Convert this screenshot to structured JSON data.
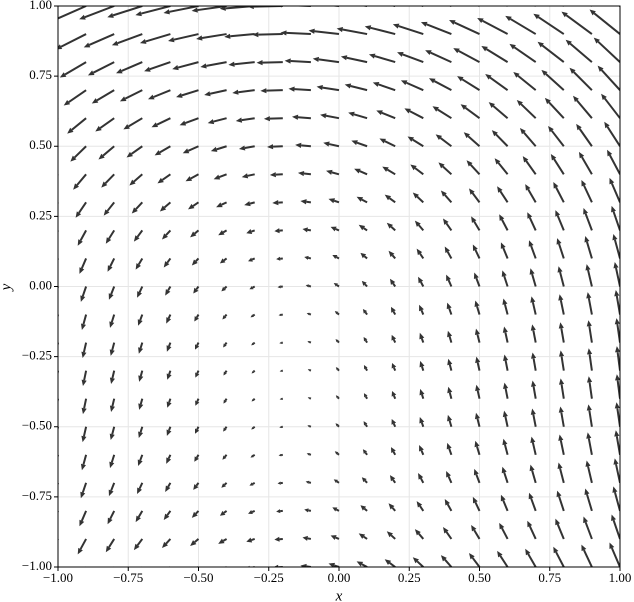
{
  "chart_data": {
    "type": "quiver",
    "x_label": "x",
    "y_label": "y",
    "xlim": [
      -1,
      1
    ],
    "ylim": [
      -1,
      1
    ],
    "xticks": [
      {
        "value": -1,
        "label": "−1.00"
      },
      {
        "value": -0.75,
        "label": "−0.75"
      },
      {
        "value": -0.5,
        "label": "−0.50"
      },
      {
        "value": -0.25,
        "label": "−0.25"
      },
      {
        "value": 0,
        "label": "0.00"
      },
      {
        "value": 0.25,
        "label": "0.25"
      },
      {
        "value": 0.5,
        "label": "0.50"
      },
      {
        "value": 0.75,
        "label": "0.75"
      },
      {
        "value": 1,
        "label": "1.00"
      }
    ],
    "yticks": [
      {
        "value": -1,
        "label": "−1.00"
      },
      {
        "value": -0.75,
        "label": "−0.75"
      },
      {
        "value": -0.5,
        "label": "−0.50"
      },
      {
        "value": -0.25,
        "label": "−0.25"
      },
      {
        "value": 0,
        "label": "0.00"
      },
      {
        "value": 0.25,
        "label": "0.25"
      },
      {
        "value": 0.5,
        "label": "0.50"
      },
      {
        "value": 0.75,
        "label": "0.75"
      },
      {
        "value": 1,
        "label": "1.00"
      }
    ],
    "grid": true,
    "color": "#333333",
    "x": [
      -1,
      -0.9,
      -0.8,
      -0.7,
      -0.6,
      -0.5,
      -0.4,
      -0.3,
      -0.2,
      -0.1,
      0,
      0.1,
      0.2,
      0.3,
      0.4,
      0.5,
      0.6,
      0.7,
      0.8,
      0.9,
      1
    ],
    "y": [
      -1,
      -0.9,
      -0.8,
      -0.7,
      -0.6,
      -0.5,
      -0.4,
      -0.3,
      -0.2,
      -0.1,
      0,
      0.1,
      0.2,
      0.3,
      0.4,
      0.5,
      0.6,
      0.7,
      0.8,
      0.9,
      1
    ],
    "u": [
      [
        -0.3,
        -0.3,
        -0.3,
        -0.3,
        -0.3,
        -0.3,
        -0.3,
        -0.3,
        -0.3,
        -0.3,
        -0.3,
        -0.3,
        -0.3,
        -0.3,
        -0.3,
        -0.3,
        -0.3,
        -0.3,
        -0.3,
        -0.3,
        -0.3
      ],
      [
        -0.24,
        -0.24,
        -0.24,
        -0.24,
        -0.24,
        -0.24,
        -0.24,
        -0.24,
        -0.24,
        -0.24,
        -0.24,
        -0.24,
        -0.24,
        -0.24,
        -0.24,
        -0.24,
        -0.24,
        -0.24,
        -0.24,
        -0.24,
        -0.24
      ],
      [
        -0.19,
        -0.19,
        -0.19,
        -0.19,
        -0.19,
        -0.19,
        -0.19,
        -0.19,
        -0.19,
        -0.19,
        -0.19,
        -0.19,
        -0.19,
        -0.19,
        -0.19,
        -0.19,
        -0.19,
        -0.19,
        -0.19,
        -0.19,
        -0.19
      ],
      [
        -0.15,
        -0.15,
        -0.15,
        -0.15,
        -0.15,
        -0.15,
        -0.15,
        -0.15,
        -0.15,
        -0.15,
        -0.15,
        -0.15,
        -0.15,
        -0.15,
        -0.15,
        -0.15,
        -0.15,
        -0.15,
        -0.15,
        -0.15,
        -0.15
      ],
      [
        -0.12,
        -0.12,
        -0.12,
        -0.12,
        -0.12,
        -0.12,
        -0.12,
        -0.12,
        -0.12,
        -0.12,
        -0.12,
        -0.12,
        -0.12,
        -0.12,
        -0.12,
        -0.12,
        -0.12,
        -0.12,
        -0.12,
        -0.12,
        -0.12
      ],
      [
        -0.1,
        -0.1,
        -0.1,
        -0.1,
        -0.1,
        -0.1,
        -0.1,
        -0.1,
        -0.1,
        -0.1,
        -0.1,
        -0.1,
        -0.1,
        -0.1,
        -0.1,
        -0.1,
        -0.1,
        -0.1,
        -0.1,
        -0.1,
        -0.1
      ],
      [
        -0.09,
        -0.09,
        -0.09,
        -0.09,
        -0.09,
        -0.09,
        -0.09,
        -0.09,
        -0.09,
        -0.09,
        -0.09,
        -0.09,
        -0.09,
        -0.09,
        -0.09,
        -0.09,
        -0.09,
        -0.09,
        -0.09,
        -0.09,
        -0.09
      ],
      [
        -0.09,
        -0.09,
        -0.09,
        -0.09,
        -0.09,
        -0.09,
        -0.09,
        -0.09,
        -0.09,
        -0.09,
        -0.09,
        -0.09,
        -0.09,
        -0.09,
        -0.09,
        -0.09,
        -0.09,
        -0.09,
        -0.09,
        -0.09,
        -0.09
      ],
      [
        -0.1,
        -0.1,
        -0.1,
        -0.1,
        -0.1,
        -0.1,
        -0.1,
        -0.1,
        -0.1,
        -0.1,
        -0.1,
        -0.1,
        -0.1,
        -0.1,
        -0.1,
        -0.1,
        -0.1,
        -0.1,
        -0.1,
        -0.1,
        -0.1
      ],
      [
        -0.12,
        -0.12,
        -0.12,
        -0.12,
        -0.12,
        -0.12,
        -0.12,
        -0.12,
        -0.12,
        -0.12,
        -0.12,
        -0.12,
        -0.12,
        -0.12,
        -0.12,
        -0.12,
        -0.12,
        -0.12,
        -0.12,
        -0.12,
        -0.12
      ],
      [
        -0.15,
        -0.15,
        -0.15,
        -0.15,
        -0.15,
        -0.15,
        -0.15,
        -0.15,
        -0.15,
        -0.15,
        -0.15,
        -0.15,
        -0.15,
        -0.15,
        -0.15,
        -0.15,
        -0.15,
        -0.15,
        -0.15,
        -0.15,
        -0.15
      ],
      [
        -0.19,
        -0.19,
        -0.19,
        -0.19,
        -0.19,
        -0.19,
        -0.19,
        -0.19,
        -0.19,
        -0.19,
        -0.19,
        -0.19,
        -0.19,
        -0.19,
        -0.19,
        -0.19,
        -0.19,
        -0.19,
        -0.19,
        -0.19,
        -0.19
      ],
      [
        -0.24,
        -0.24,
        -0.24,
        -0.24,
        -0.24,
        -0.24,
        -0.24,
        -0.24,
        -0.24,
        -0.24,
        -0.24,
        -0.24,
        -0.24,
        -0.24,
        -0.24,
        -0.24,
        -0.24,
        -0.24,
        -0.24,
        -0.24,
        -0.24
      ],
      [
        -0.3,
        -0.3,
        -0.3,
        -0.3,
        -0.3,
        -0.3,
        -0.3,
        -0.3,
        -0.3,
        -0.3,
        -0.3,
        -0.3,
        -0.3,
        -0.3,
        -0.3,
        -0.3,
        -0.3,
        -0.3,
        -0.3,
        -0.3,
        -0.3
      ],
      [
        -0.37,
        -0.37,
        -0.37,
        -0.37,
        -0.37,
        -0.37,
        -0.37,
        -0.37,
        -0.37,
        -0.37,
        -0.37,
        -0.37,
        -0.37,
        -0.37,
        -0.37,
        -0.37,
        -0.37,
        -0.37,
        -0.37,
        -0.37,
        -0.37
      ],
      [
        -0.45,
        -0.45,
        -0.45,
        -0.45,
        -0.45,
        -0.45,
        -0.45,
        -0.45,
        -0.45,
        -0.45,
        -0.45,
        -0.45,
        -0.45,
        -0.45,
        -0.45,
        -0.45,
        -0.45,
        -0.45,
        -0.45,
        -0.45,
        -0.45
      ],
      [
        -0.54,
        -0.54,
        -0.54,
        -0.54,
        -0.54,
        -0.54,
        -0.54,
        -0.54,
        -0.54,
        -0.54,
        -0.54,
        -0.54,
        -0.54,
        -0.54,
        -0.54,
        -0.54,
        -0.54,
        -0.54,
        -0.54,
        -0.54,
        -0.54
      ],
      [
        -0.64,
        -0.64,
        -0.64,
        -0.64,
        -0.64,
        -0.64,
        -0.64,
        -0.64,
        -0.64,
        -0.64,
        -0.64,
        -0.64,
        -0.64,
        -0.64,
        -0.64,
        -0.64,
        -0.64,
        -0.64,
        -0.64,
        -0.64,
        -0.64
      ],
      [
        -0.75,
        -0.75,
        -0.75,
        -0.75,
        -0.75,
        -0.75,
        -0.75,
        -0.75,
        -0.75,
        -0.75,
        -0.75,
        -0.75,
        -0.75,
        -0.75,
        -0.75,
        -0.75,
        -0.75,
        -0.75,
        -0.75,
        -0.75,
        -0.75
      ],
      [
        -0.87,
        -0.87,
        -0.87,
        -0.87,
        -0.87,
        -0.87,
        -0.87,
        -0.87,
        -0.87,
        -0.87,
        -0.87,
        -0.87,
        -0.87,
        -0.87,
        -0.87,
        -0.87,
        -0.87,
        -0.87,
        -0.87,
        -0.87,
        -0.87
      ],
      [
        -1,
        -1,
        -1,
        -1,
        -1,
        -1,
        -1,
        -1,
        -1,
        -1,
        -1,
        -1,
        -1,
        -1,
        -1,
        -1,
        -1,
        -1,
        -1,
        -1,
        -1
      ]
    ],
    "v": [
      [
        -0.5,
        -0.44,
        -0.38,
        -0.32,
        -0.26,
        -0.2,
        -0.14,
        -0.08,
        -0.02,
        0.04,
        0.1,
        0.16,
        0.22,
        0.28,
        0.34,
        0.4,
        0.46,
        0.52,
        0.58,
        0.64,
        0.7
      ],
      [
        -0.5,
        -0.44,
        -0.38,
        -0.32,
        -0.26,
        -0.2,
        -0.14,
        -0.08,
        -0.02,
        0.04,
        0.1,
        0.16,
        0.22,
        0.28,
        0.34,
        0.4,
        0.46,
        0.52,
        0.58,
        0.64,
        0.7
      ],
      [
        -0.5,
        -0.44,
        -0.38,
        -0.32,
        -0.26,
        -0.2,
        -0.14,
        -0.08,
        -0.02,
        0.04,
        0.1,
        0.16,
        0.22,
        0.28,
        0.34,
        0.4,
        0.46,
        0.52,
        0.58,
        0.64,
        0.7
      ],
      [
        -0.5,
        -0.44,
        -0.38,
        -0.32,
        -0.26,
        -0.2,
        -0.14,
        -0.08,
        -0.02,
        0.04,
        0.1,
        0.16,
        0.22,
        0.28,
        0.34,
        0.4,
        0.46,
        0.52,
        0.58,
        0.64,
        0.7
      ],
      [
        -0.5,
        -0.44,
        -0.38,
        -0.32,
        -0.26,
        -0.2,
        -0.14,
        -0.08,
        -0.02,
        0.04,
        0.1,
        0.16,
        0.22,
        0.28,
        0.34,
        0.4,
        0.46,
        0.52,
        0.58,
        0.64,
        0.7
      ],
      [
        -0.5,
        -0.44,
        -0.38,
        -0.32,
        -0.26,
        -0.2,
        -0.14,
        -0.08,
        -0.02,
        0.04,
        0.1,
        0.16,
        0.22,
        0.28,
        0.34,
        0.4,
        0.46,
        0.52,
        0.58,
        0.64,
        0.7
      ],
      [
        -0.5,
        -0.44,
        -0.38,
        -0.32,
        -0.26,
        -0.2,
        -0.14,
        -0.08,
        -0.02,
        0.04,
        0.1,
        0.16,
        0.22,
        0.28,
        0.34,
        0.4,
        0.46,
        0.52,
        0.58,
        0.64,
        0.7
      ],
      [
        -0.5,
        -0.44,
        -0.38,
        -0.32,
        -0.26,
        -0.2,
        -0.14,
        -0.08,
        -0.02,
        0.04,
        0.1,
        0.16,
        0.22,
        0.28,
        0.34,
        0.4,
        0.46,
        0.52,
        0.58,
        0.64,
        0.7
      ],
      [
        -0.5,
        -0.44,
        -0.38,
        -0.32,
        -0.26,
        -0.2,
        -0.14,
        -0.08,
        -0.02,
        0.04,
        0.1,
        0.16,
        0.22,
        0.28,
        0.34,
        0.4,
        0.46,
        0.52,
        0.58,
        0.64,
        0.7
      ],
      [
        -0.5,
        -0.44,
        -0.38,
        -0.32,
        -0.26,
        -0.2,
        -0.14,
        -0.08,
        -0.02,
        0.04,
        0.1,
        0.16,
        0.22,
        0.28,
        0.34,
        0.4,
        0.46,
        0.52,
        0.58,
        0.64,
        0.7
      ],
      [
        -0.5,
        -0.44,
        -0.38,
        -0.32,
        -0.26,
        -0.2,
        -0.14,
        -0.08,
        -0.02,
        0.04,
        0.1,
        0.16,
        0.22,
        0.28,
        0.34,
        0.4,
        0.46,
        0.52,
        0.58,
        0.64,
        0.7
      ],
      [
        -0.5,
        -0.44,
        -0.38,
        -0.32,
        -0.26,
        -0.2,
        -0.14,
        -0.08,
        -0.02,
        0.04,
        0.1,
        0.16,
        0.22,
        0.28,
        0.34,
        0.4,
        0.46,
        0.52,
        0.58,
        0.64,
        0.7
      ],
      [
        -0.5,
        -0.44,
        -0.38,
        -0.32,
        -0.26,
        -0.2,
        -0.14,
        -0.08,
        -0.02,
        0.04,
        0.1,
        0.16,
        0.22,
        0.28,
        0.34,
        0.4,
        0.46,
        0.52,
        0.58,
        0.64,
        0.7
      ],
      [
        -0.5,
        -0.44,
        -0.38,
        -0.32,
        -0.26,
        -0.2,
        -0.14,
        -0.08,
        -0.02,
        0.04,
        0.1,
        0.16,
        0.22,
        0.28,
        0.34,
        0.4,
        0.46,
        0.52,
        0.58,
        0.64,
        0.7
      ],
      [
        -0.5,
        -0.44,
        -0.38,
        -0.32,
        -0.26,
        -0.2,
        -0.14,
        -0.08,
        -0.02,
        0.04,
        0.1,
        0.16,
        0.22,
        0.28,
        0.34,
        0.4,
        0.46,
        0.52,
        0.58,
        0.64,
        0.7
      ],
      [
        -0.5,
        -0.44,
        -0.38,
        -0.32,
        -0.26,
        -0.2,
        -0.14,
        -0.08,
        -0.02,
        0.04,
        0.1,
        0.16,
        0.22,
        0.28,
        0.34,
        0.4,
        0.46,
        0.52,
        0.58,
        0.64,
        0.7
      ],
      [
        -0.5,
        -0.44,
        -0.38,
        -0.32,
        -0.26,
        -0.2,
        -0.14,
        -0.08,
        -0.02,
        0.04,
        0.1,
        0.16,
        0.22,
        0.28,
        0.34,
        0.4,
        0.46,
        0.52,
        0.58,
        0.64,
        0.7
      ],
      [
        -0.5,
        -0.44,
        -0.38,
        -0.32,
        -0.26,
        -0.2,
        -0.14,
        -0.08,
        -0.02,
        0.04,
        0.1,
        0.16,
        0.22,
        0.28,
        0.34,
        0.4,
        0.46,
        0.52,
        0.58,
        0.64,
        0.7
      ],
      [
        -0.5,
        -0.44,
        -0.38,
        -0.32,
        -0.26,
        -0.2,
        -0.14,
        -0.08,
        -0.02,
        0.04,
        0.1,
        0.16,
        0.22,
        0.28,
        0.34,
        0.4,
        0.46,
        0.52,
        0.58,
        0.64,
        0.7
      ],
      [
        -0.5,
        -0.44,
        -0.38,
        -0.32,
        -0.26,
        -0.2,
        -0.14,
        -0.08,
        -0.02,
        0.04,
        0.1,
        0.16,
        0.22,
        0.28,
        0.34,
        0.4,
        0.46,
        0.52,
        0.58,
        0.64,
        0.7
      ],
      [
        -0.5,
        -0.44,
        -0.38,
        -0.32,
        -0.26,
        -0.2,
        -0.14,
        -0.08,
        -0.02,
        0.04,
        0.1,
        0.16,
        0.22,
        0.28,
        0.34,
        0.4,
        0.46,
        0.52,
        0.58,
        0.64,
        0.7
      ]
    ]
  }
}
